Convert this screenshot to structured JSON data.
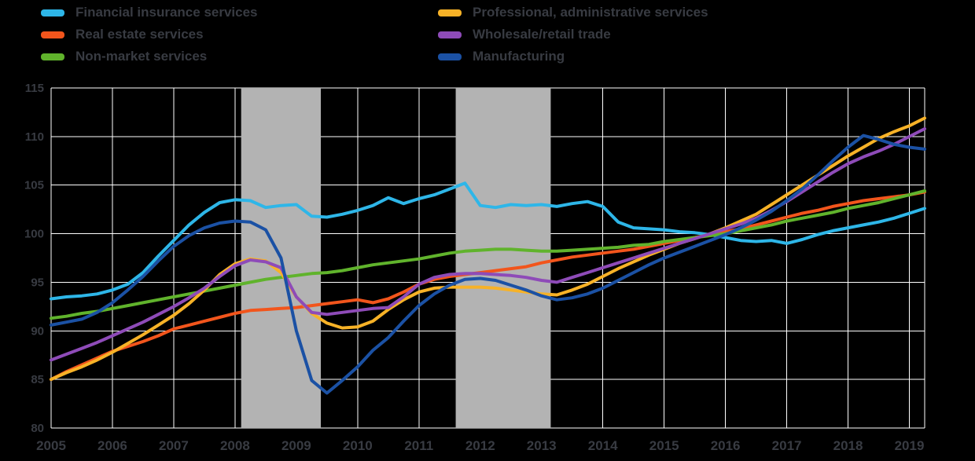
{
  "colors": {
    "background": "#000000",
    "grid": "#ffffff",
    "band": "#b3b3b3",
    "text": "#383b42"
  },
  "chart_data": {
    "type": "line",
    "title": "",
    "xlabel": "",
    "ylabel": "",
    "xlim": [
      2005,
      2019.25
    ],
    "ylim": [
      80,
      115
    ],
    "x_ticks": [
      2005,
      2006,
      2007,
      2008,
      2009,
      2010,
      2011,
      2012,
      2013,
      2014,
      2015,
      2016,
      2017,
      2018,
      2019
    ],
    "y_ticks": [
      80,
      85,
      90,
      95,
      100,
      105,
      110,
      115
    ],
    "grid": true,
    "legend_position": "top",
    "recession_bands": [
      [
        2008.1,
        2009.4
      ],
      [
        2011.6,
        2013.15
      ]
    ],
    "x_start": 2005.0,
    "x_step": 0.25,
    "series": [
      {
        "name": "Financial insurance services",
        "color": "#2eb6e8",
        "values": [
          93.3,
          93.5,
          93.6,
          93.8,
          94.2,
          94.8,
          96.0,
          97.7,
          99.3,
          100.9,
          102.2,
          103.2,
          103.5,
          103.4,
          102.7,
          102.9,
          103.0,
          101.8,
          101.7,
          102.0,
          102.4,
          102.9,
          103.7,
          103.1,
          103.6,
          104.0,
          104.6,
          105.2,
          102.9,
          102.7,
          103.0,
          102.9,
          103.0,
          102.8,
          103.1,
          103.3,
          102.8,
          101.2,
          100.6,
          100.5,
          100.4,
          100.2,
          100.1,
          99.9,
          99.6,
          99.3,
          99.2,
          99.3,
          99.0,
          99.4,
          99.9,
          100.3,
          100.6,
          100.9,
          101.2,
          101.6,
          102.1,
          102.6
        ]
      },
      {
        "name": "Real estate services",
        "color": "#f2551c",
        "values": [
          85.0,
          85.8,
          86.5,
          87.2,
          87.9,
          88.4,
          88.9,
          89.5,
          90.2,
          90.6,
          91.0,
          91.4,
          91.8,
          92.1,
          92.2,
          92.3,
          92.4,
          92.6,
          92.8,
          93.0,
          93.2,
          92.9,
          93.3,
          94.0,
          94.8,
          95.3,
          95.6,
          95.8,
          96.0,
          96.2,
          96.4,
          96.6,
          97.0,
          97.3,
          97.6,
          97.8,
          98.0,
          98.2,
          98.4,
          98.7,
          99.0,
          99.3,
          99.6,
          99.9,
          100.2,
          100.5,
          100.9,
          101.3,
          101.7,
          102.1,
          102.4,
          102.8,
          103.1,
          103.4,
          103.6,
          103.8,
          104.0,
          104.3
        ]
      },
      {
        "name": "Non-market services",
        "color": "#60b32c",
        "values": [
          91.3,
          91.5,
          91.8,
          92.0,
          92.3,
          92.6,
          92.9,
          93.2,
          93.5,
          93.8,
          94.1,
          94.4,
          94.7,
          95.0,
          95.3,
          95.5,
          95.7,
          95.9,
          96.0,
          96.2,
          96.5,
          96.8,
          97.0,
          97.2,
          97.4,
          97.7,
          98.0,
          98.2,
          98.3,
          98.4,
          98.4,
          98.3,
          98.2,
          98.2,
          98.3,
          98.4,
          98.5,
          98.6,
          98.8,
          98.9,
          99.2,
          99.4,
          99.6,
          99.8,
          100.0,
          100.3,
          100.6,
          100.9,
          101.3,
          101.6,
          101.9,
          102.2,
          102.6,
          102.9,
          103.2,
          103.6,
          104.0,
          104.4
        ]
      },
      {
        "name": "Professional, administrative services",
        "color": "#f7b227",
        "values": [
          85.0,
          85.7,
          86.3,
          87.0,
          87.8,
          88.7,
          89.6,
          90.6,
          91.6,
          92.8,
          94.2,
          95.8,
          96.9,
          97.4,
          97.2,
          96.0,
          93.5,
          91.8,
          90.8,
          90.3,
          90.4,
          91.0,
          92.2,
          93.2,
          94.0,
          94.4,
          94.5,
          94.5,
          94.5,
          94.4,
          94.2,
          94.0,
          93.8,
          93.7,
          94.2,
          94.8,
          95.6,
          96.4,
          97.1,
          97.8,
          98.4,
          99.0,
          99.5,
          100.0,
          100.6,
          101.3,
          102.0,
          103.0,
          104.0,
          105.0,
          106.0,
          107.0,
          108.0,
          108.9,
          109.8,
          110.5,
          111.1,
          111.9
        ]
      },
      {
        "name": "Wholesale/retail trade",
        "color": "#8e4bb8",
        "values": [
          87.0,
          87.6,
          88.2,
          88.8,
          89.5,
          90.2,
          90.9,
          91.7,
          92.5,
          93.4,
          94.4,
          95.6,
          96.7,
          97.3,
          97.1,
          96.5,
          93.5,
          91.9,
          91.7,
          91.9,
          92.1,
          92.3,
          92.4,
          93.5,
          94.8,
          95.5,
          95.8,
          95.9,
          95.9,
          95.8,
          95.7,
          95.5,
          95.2,
          95.0,
          95.5,
          96.0,
          96.5,
          97.0,
          97.5,
          98.0,
          98.5,
          99.0,
          99.5,
          100.0,
          100.5,
          101.0,
          101.6,
          102.4,
          103.3,
          104.3,
          105.3,
          106.3,
          107.2,
          107.9,
          108.5,
          109.2,
          110.0,
          110.8
        ]
      },
      {
        "name": "Manufacturing",
        "color": "#1b51a4",
        "values": [
          90.6,
          90.9,
          91.2,
          91.9,
          92.9,
          94.2,
          95.6,
          97.2,
          98.7,
          99.8,
          100.6,
          101.1,
          101.3,
          101.2,
          100.4,
          97.5,
          90.0,
          84.9,
          83.6,
          84.9,
          86.3,
          88.0,
          89.3,
          91.0,
          92.6,
          93.8,
          94.7,
          95.3,
          95.4,
          95.2,
          94.7,
          94.2,
          93.6,
          93.2,
          93.4,
          93.8,
          94.4,
          95.2,
          96.0,
          96.8,
          97.5,
          98.1,
          98.7,
          99.3,
          99.9,
          100.6,
          101.4,
          102.3,
          103.4,
          104.6,
          106.0,
          107.5,
          108.9,
          110.1,
          109.7,
          109.2,
          108.9,
          108.7
        ]
      }
    ]
  }
}
